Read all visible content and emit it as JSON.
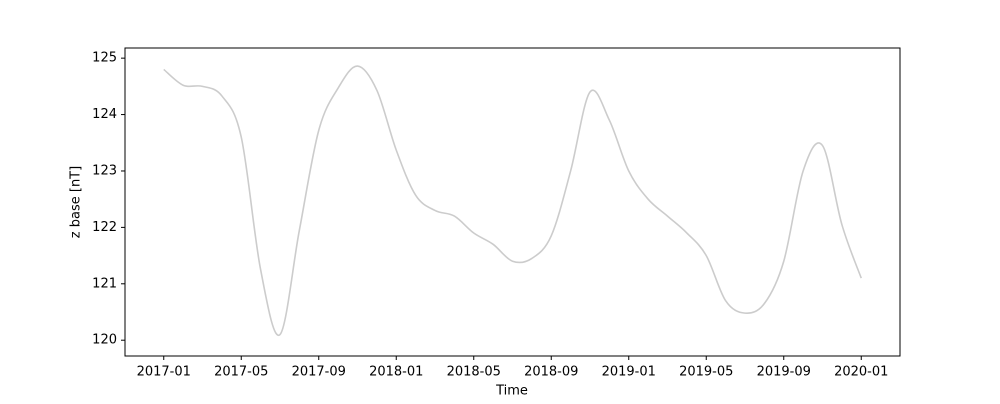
{
  "chart_data": {
    "type": "line",
    "x_label": "Time",
    "y_label": "z base [nT]",
    "x": [
      "2017-01",
      "2017-02",
      "2017-03",
      "2017-04",
      "2017-05",
      "2017-06",
      "2017-07",
      "2017-08",
      "2017-09",
      "2017-10",
      "2017-11",
      "2017-12",
      "2018-01",
      "2018-02",
      "2018-03",
      "2018-04",
      "2018-05",
      "2018-06",
      "2018-07",
      "2018-08",
      "2018-09",
      "2018-10",
      "2018-11",
      "2018-12",
      "2019-01",
      "2019-02",
      "2019-03",
      "2019-04",
      "2019-05",
      "2019-06",
      "2019-07",
      "2019-08",
      "2019-09",
      "2019-10",
      "2019-11",
      "2019-12",
      "2020-01"
    ],
    "series": [
      {
        "color": "#cccccc",
        "values": [
          124.8,
          124.52,
          124.5,
          124.33,
          123.6,
          121.25,
          120.1,
          121.95,
          123.72,
          124.47,
          124.86,
          124.43,
          123.37,
          122.57,
          122.3,
          122.2,
          121.9,
          121.7,
          121.4,
          121.45,
          121.85,
          123.0,
          124.4,
          123.9,
          123.0,
          122.5,
          122.2,
          121.9,
          121.5,
          120.7,
          120.48,
          120.65,
          121.4,
          123.0,
          123.45,
          122.05,
          121.1
        ]
      }
    ],
    "xlim": [
      "2016-11",
      "2020-03"
    ],
    "xticks": [
      "2017-01",
      "2017-05",
      "2017-09",
      "2018-01",
      "2018-05",
      "2018-09",
      "2019-01",
      "2019-05",
      "2019-09",
      "2020-01"
    ],
    "ylim": [
      119.72,
      125.18
    ],
    "yticks": [
      120,
      121,
      122,
      123,
      124,
      125
    ],
    "grid": false
  }
}
